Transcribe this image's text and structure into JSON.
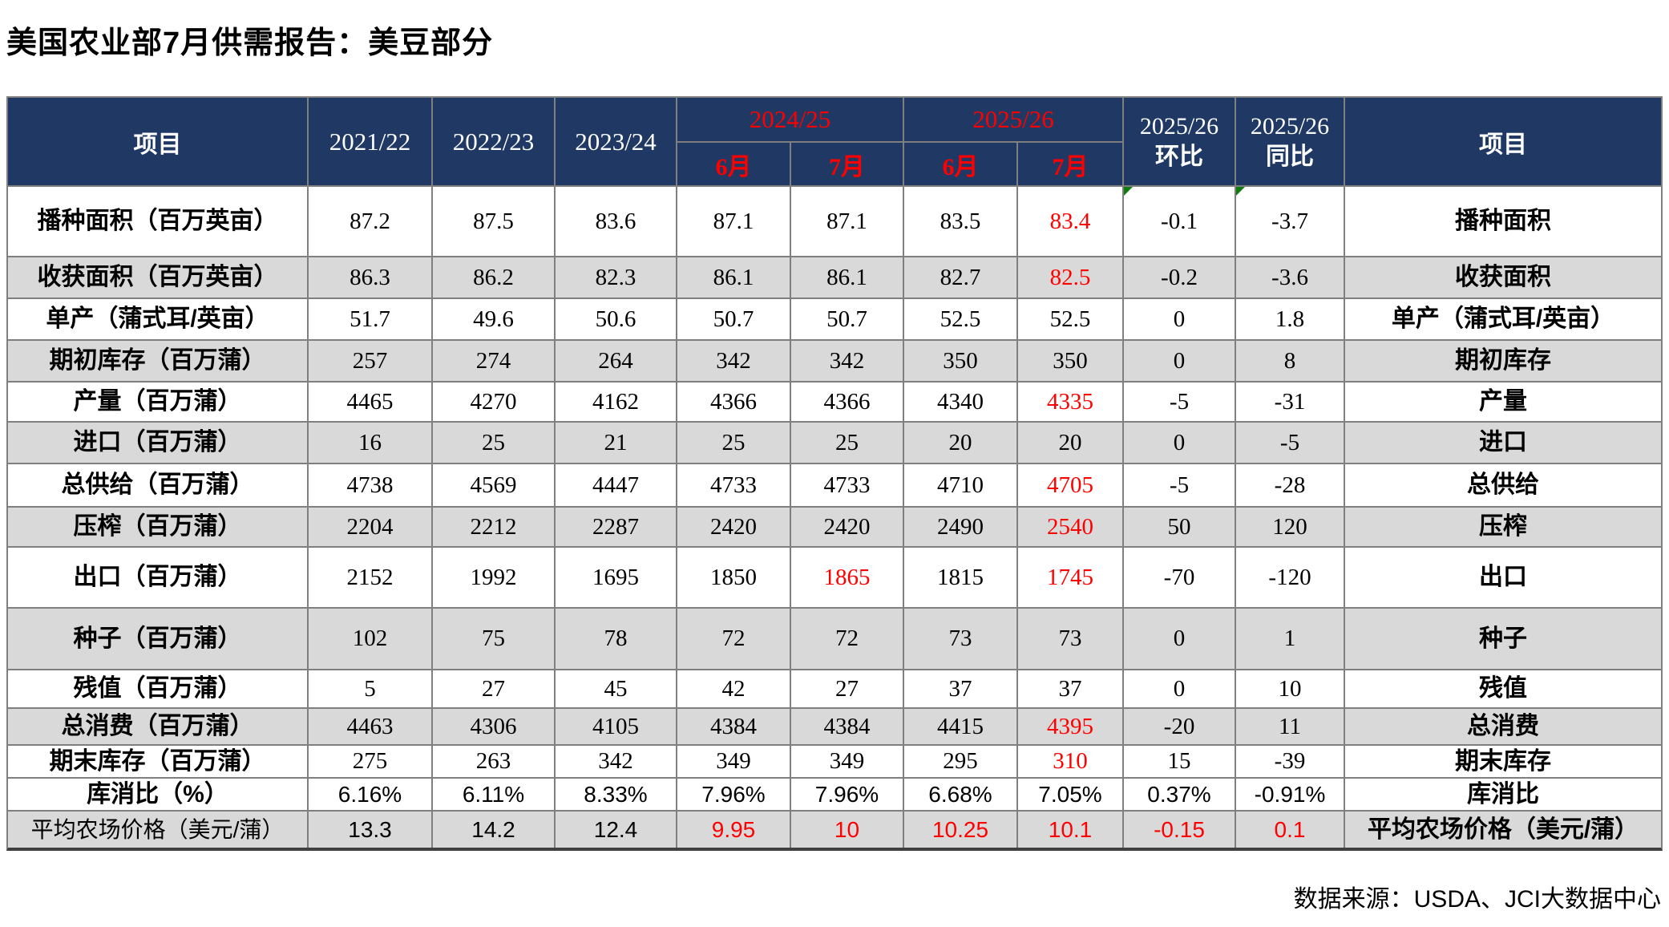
{
  "title": "美国农业部7月供需报告：美豆部分",
  "header": {
    "item_left": "项目",
    "item_right": "项目",
    "years": [
      "2021/22",
      "2022/23",
      "2023/24"
    ],
    "group1": {
      "label": "2024/25",
      "months": [
        "6月",
        "7月"
      ]
    },
    "group2": {
      "label": "2025/26",
      "months": [
        "6月",
        "7月"
      ]
    },
    "mom": {
      "year": "2025/26",
      "label": "环比"
    },
    "yoy": {
      "year": "2025/26",
      "label": "同比"
    }
  },
  "rows": [
    {
      "label": "播种面积（百万英亩）",
      "short": "播种面积",
      "values": [
        {
          "v": "87.2"
        },
        {
          "v": "87.5"
        },
        {
          "v": "83.6"
        },
        {
          "v": "87.1"
        },
        {
          "v": "87.1"
        },
        {
          "v": "83.5"
        },
        {
          "v": "83.4",
          "red": true
        },
        {
          "v": "-0.1"
        },
        {
          "v": "-3.7"
        }
      ]
    },
    {
      "label": "收获面积（百万英亩）",
      "short": "收获面积",
      "values": [
        {
          "v": "86.3"
        },
        {
          "v": "86.2"
        },
        {
          "v": "82.3"
        },
        {
          "v": "86.1"
        },
        {
          "v": "86.1"
        },
        {
          "v": "82.7"
        },
        {
          "v": "82.5",
          "red": true
        },
        {
          "v": "-0.2"
        },
        {
          "v": "-3.6"
        }
      ]
    },
    {
      "label": "单产（蒲式耳/英亩）",
      "short": "单产（蒲式耳/英亩）",
      "values": [
        {
          "v": "51.7"
        },
        {
          "v": "49.6"
        },
        {
          "v": "50.6"
        },
        {
          "v": "50.7"
        },
        {
          "v": "50.7"
        },
        {
          "v": "52.5"
        },
        {
          "v": "52.5"
        },
        {
          "v": "0"
        },
        {
          "v": "1.8"
        }
      ]
    },
    {
      "label": "期初库存（百万蒲）",
      "short": "期初库存",
      "values": [
        {
          "v": "257"
        },
        {
          "v": "274"
        },
        {
          "v": "264"
        },
        {
          "v": "342"
        },
        {
          "v": "342"
        },
        {
          "v": "350"
        },
        {
          "v": "350"
        },
        {
          "v": "0"
        },
        {
          "v": "8"
        }
      ]
    },
    {
      "label": "产量（百万蒲）",
      "short": "产量",
      "values": [
        {
          "v": "4465"
        },
        {
          "v": "4270"
        },
        {
          "v": "4162"
        },
        {
          "v": "4366"
        },
        {
          "v": "4366"
        },
        {
          "v": "4340"
        },
        {
          "v": "4335",
          "red": true
        },
        {
          "v": "-5"
        },
        {
          "v": "-31"
        }
      ]
    },
    {
      "label": "进口（百万蒲）",
      "short": "进口",
      "values": [
        {
          "v": "16"
        },
        {
          "v": "25"
        },
        {
          "v": "21"
        },
        {
          "v": "25"
        },
        {
          "v": "25"
        },
        {
          "v": "20"
        },
        {
          "v": "20"
        },
        {
          "v": "0"
        },
        {
          "v": "-5"
        }
      ]
    },
    {
      "label": "总供给（百万蒲）",
      "short": "总供给",
      "values": [
        {
          "v": "4738"
        },
        {
          "v": "4569"
        },
        {
          "v": "4447"
        },
        {
          "v": "4733"
        },
        {
          "v": "4733"
        },
        {
          "v": "4710"
        },
        {
          "v": "4705",
          "red": true
        },
        {
          "v": "-5"
        },
        {
          "v": "-28"
        }
      ]
    },
    {
      "label": "压榨（百万蒲）",
      "short": "压榨",
      "values": [
        {
          "v": "2204"
        },
        {
          "v": "2212"
        },
        {
          "v": "2287"
        },
        {
          "v": "2420"
        },
        {
          "v": "2420"
        },
        {
          "v": "2490"
        },
        {
          "v": "2540",
          "red": true
        },
        {
          "v": "50"
        },
        {
          "v": "120"
        }
      ]
    },
    {
      "label": "出口（百万蒲）",
      "short": "出口",
      "values": [
        {
          "v": "2152"
        },
        {
          "v": "1992"
        },
        {
          "v": "1695"
        },
        {
          "v": "1850"
        },
        {
          "v": "1865",
          "red": true
        },
        {
          "v": "1815"
        },
        {
          "v": "1745",
          "red": true
        },
        {
          "v": "-70"
        },
        {
          "v": "-120"
        }
      ]
    },
    {
      "label": "种子（百万蒲）",
      "short": "种子",
      "values": [
        {
          "v": "102"
        },
        {
          "v": "75"
        },
        {
          "v": "78"
        },
        {
          "v": "72"
        },
        {
          "v": "72"
        },
        {
          "v": "73"
        },
        {
          "v": "73"
        },
        {
          "v": "0"
        },
        {
          "v": "1"
        }
      ]
    },
    {
      "label": "残值（百万蒲）",
      "short": "残值",
      "values": [
        {
          "v": "5"
        },
        {
          "v": "27"
        },
        {
          "v": "45"
        },
        {
          "v": "42"
        },
        {
          "v": "27"
        },
        {
          "v": "37"
        },
        {
          "v": "37"
        },
        {
          "v": "0"
        },
        {
          "v": "10"
        }
      ]
    },
    {
      "label": "总消费（百万蒲）",
      "short": "总消费",
      "values": [
        {
          "v": "4463"
        },
        {
          "v": "4306"
        },
        {
          "v": "4105"
        },
        {
          "v": "4384"
        },
        {
          "v": "4384"
        },
        {
          "v": "4415"
        },
        {
          "v": "4395",
          "red": true
        },
        {
          "v": "-20"
        },
        {
          "v": "11"
        }
      ]
    },
    {
      "label": "期末库存（百万蒲）",
      "short": "期末库存",
      "values": [
        {
          "v": "275"
        },
        {
          "v": "263"
        },
        {
          "v": "342"
        },
        {
          "v": "349"
        },
        {
          "v": "349"
        },
        {
          "v": "295"
        },
        {
          "v": "310",
          "red": true
        },
        {
          "v": "15"
        },
        {
          "v": "-39"
        }
      ]
    },
    {
      "label": "库消比（%）",
      "short": "库消比",
      "values": [
        {
          "v": "6.16%"
        },
        {
          "v": "6.11%"
        },
        {
          "v": "8.33%"
        },
        {
          "v": "7.96%"
        },
        {
          "v": "7.96%"
        },
        {
          "v": "6.68%"
        },
        {
          "v": "7.05%"
        },
        {
          "v": "0.37%"
        },
        {
          "v": "-0.91%"
        }
      ]
    },
    {
      "label": "平均农场价格（美元/蒲）",
      "short": "平均农场价格（美元/蒲）",
      "values": [
        {
          "v": "13.3"
        },
        {
          "v": "14.2"
        },
        {
          "v": "12.4"
        },
        {
          "v": "9.95",
          "red": true
        },
        {
          "v": "10",
          "red": true
        },
        {
          "v": "10.25",
          "red": true
        },
        {
          "v": "10.1",
          "red": true
        },
        {
          "v": "-0.15",
          "red": true
        },
        {
          "v": "0.1",
          "red": true
        }
      ]
    }
  ],
  "footer": "数据来源：USDA、JCI大数据中心",
  "colors": {
    "header_bg": "#1F3864",
    "stripe": "#D9D9D9",
    "red_text": "#FF0000",
    "grid_line": "#7F7F7F",
    "bottom_border": "#404040",
    "flag_green": "#107C10"
  }
}
